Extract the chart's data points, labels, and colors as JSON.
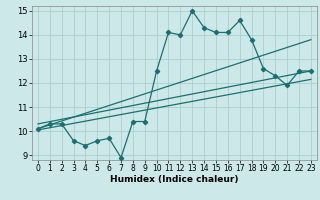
{
  "title": "",
  "xlabel": "Humidex (Indice chaleur)",
  "bg_color": "#cce8e8",
  "grid_color": "#aacfcf",
  "line_color": "#1a7070",
  "xlim": [
    -0.5,
    23.5
  ],
  "ylim": [
    8.8,
    15.2
  ],
  "xticks": [
    0,
    1,
    2,
    3,
    4,
    5,
    6,
    7,
    8,
    9,
    10,
    11,
    12,
    13,
    14,
    15,
    16,
    17,
    18,
    19,
    20,
    21,
    22,
    23
  ],
  "yticks": [
    9,
    10,
    11,
    12,
    13,
    14,
    15
  ],
  "series1_x": [
    0,
    1,
    2,
    3,
    4,
    5,
    6,
    7,
    8,
    9,
    10,
    11,
    12,
    13,
    14,
    15,
    16,
    17,
    18,
    19,
    20,
    21,
    22,
    23
  ],
  "series1_y": [
    10.1,
    10.3,
    10.3,
    9.6,
    9.4,
    9.6,
    9.7,
    8.9,
    10.4,
    10.4,
    12.5,
    14.1,
    14.0,
    15.0,
    14.3,
    14.1,
    14.1,
    14.6,
    13.8,
    12.6,
    12.3,
    11.9,
    12.5,
    12.5
  ],
  "trend1_x": [
    0,
    23
  ],
  "trend1_y": [
    10.1,
    13.8
  ],
  "trend2_x": [
    0,
    23
  ],
  "trend2_y": [
    10.3,
    12.5
  ],
  "trend3_x": [
    0,
    23
  ],
  "trend3_y": [
    10.05,
    12.15
  ]
}
